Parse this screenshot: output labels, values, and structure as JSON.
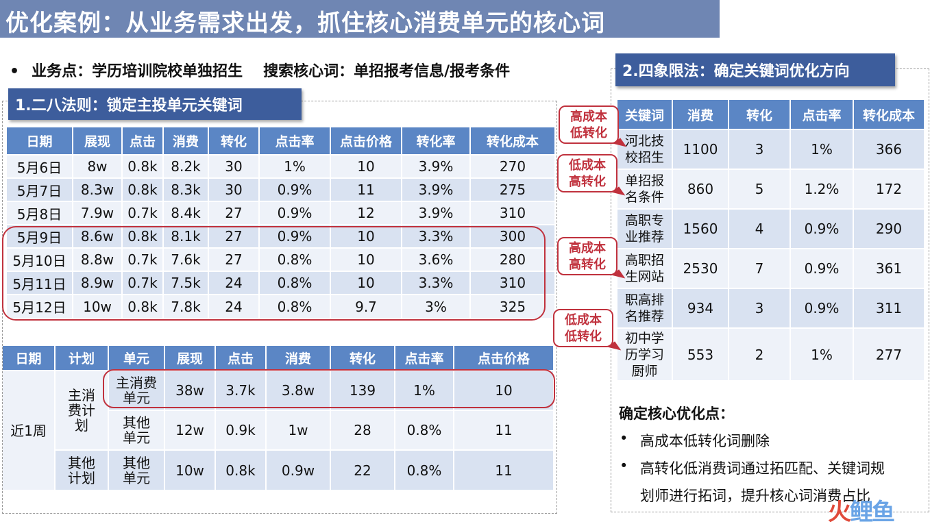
{
  "title": "优化案例：从业务需求出发，抓住核心消费单元的核心词",
  "business": {
    "bullet": "•",
    "point": "业务点：学历培训院校单独招生",
    "keyword": "搜索核心词：单招报考信息/报考条件"
  },
  "section1": {
    "header": "1.二八法则：锁定主投单元关键词",
    "table1": {
      "columns": [
        "日期",
        "展现",
        "点击",
        "消费",
        "转化",
        "点击率",
        "点击价格",
        "转化率",
        "转化成本"
      ],
      "rows": [
        [
          "5月6日",
          "8w",
          "0.8k",
          "8.2k",
          "30",
          "1%",
          "10",
          "3.9%",
          "270"
        ],
        [
          "5月7日",
          "8.3w",
          "0.8k",
          "8.3k",
          "30",
          "0.9%",
          "11",
          "3.9%",
          "275"
        ],
        [
          "5月8日",
          "7.9w",
          "0.7k",
          "8.4k",
          "27",
          "0.9%",
          "12",
          "3.9%",
          "310"
        ],
        [
          "5月9日",
          "8.6w",
          "0.8k",
          "8.1k",
          "27",
          "0.9%",
          "10",
          "3.3%",
          "300"
        ],
        [
          "5月10日",
          "8.8w",
          "0.7k",
          "7.6k",
          "27",
          "0.8%",
          "10",
          "3.6%",
          "280"
        ],
        [
          "5月11日",
          "8.9w",
          "0.7k",
          "7.5k",
          "24",
          "0.8%",
          "10",
          "3.3%",
          "310"
        ],
        [
          "5月12日",
          "10w",
          "0.8k",
          "7.8k",
          "24",
          "0.8%",
          "9.7",
          "3%",
          "325"
        ]
      ]
    },
    "table2": {
      "columns": [
        "日期",
        "计划",
        "单元",
        "展现",
        "点击",
        "消费",
        "转化",
        "点击率",
        "点击价格"
      ],
      "period": "近1周",
      "plan_main": "主消费计划",
      "plan_other": "其他计划",
      "rows": [
        [
          "主消费单元",
          "38w",
          "3.7k",
          "3.8w",
          "139",
          "1%",
          "10"
        ],
        [
          "其他单元",
          "12w",
          "0.9k",
          "1w",
          "28",
          "0.8%",
          "11"
        ],
        [
          "其他单元",
          "10w",
          "0.8k",
          "0.9w",
          "22",
          "0.8%",
          "11"
        ]
      ]
    }
  },
  "section2": {
    "header": "2.四象限法：确定关键词优化方向",
    "table3": {
      "columns": [
        "关键词",
        "消费",
        "转化",
        "点击率",
        "转化成本"
      ],
      "rows": [
        [
          "河北技校招生",
          "1100",
          "3",
          "1%",
          "366"
        ],
        [
          "单招报名条件",
          "860",
          "5",
          "1.2%",
          "172"
        ],
        [
          "高职专业推荐",
          "1560",
          "4",
          "0.9%",
          "290"
        ],
        [
          "高职招生网站",
          "2530",
          "7",
          "0.9%",
          "361"
        ],
        [
          "职高排名推荐",
          "934",
          "3",
          "0.9%",
          "311"
        ],
        [
          "初中学历学习厨师",
          "553",
          "2",
          "1%",
          "277"
        ]
      ]
    },
    "callouts": [
      {
        "line1": "高成本",
        "line2": "低转化"
      },
      {
        "line1": "低成本",
        "line2": "高转化"
      },
      {
        "line1": "高成本",
        "line2": "高转化"
      },
      {
        "line1": "低成本",
        "line2": "低转化"
      }
    ],
    "conclusion": {
      "title": "确定核心优化点：",
      "bullet": "•",
      "item1": "高成本低转化词删除",
      "item2": "高转化低消费词通过拓匹配、关键词规",
      "item2_cont": "划师进行拓词，提升核心词消费占比"
    }
  },
  "watermark": {
    "part1": "火",
    "part2": "鲤鱼"
  },
  "colors": {
    "title_bg": "#6f86b3",
    "section_bg": "#3d5d9c",
    "th_bg": "#5b86c5",
    "row_a": "#d9e2f1",
    "row_b": "#eef2f9",
    "highlight": "#c0313d"
  }
}
